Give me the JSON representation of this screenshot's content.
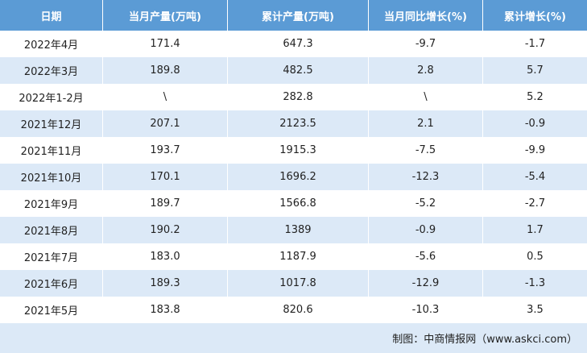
{
  "table": {
    "header": [
      "日期",
      "当月产量(万吨)",
      "累计产量(万吨)",
      "当月同比增长(%)",
      "累计增长(%)"
    ],
    "rows": [
      [
        "2022年4月",
        "171.4",
        "647.3",
        "-9.7",
        "-1.7"
      ],
      [
        "2022年3月",
        "189.8",
        "482.5",
        "2.8",
        "5.7"
      ],
      [
        "2022年1-2月",
        "\\",
        "282.8",
        "\\",
        "5.2"
      ],
      [
        "2021年12月",
        "207.1",
        "2123.5",
        "2.1",
        "-0.9"
      ],
      [
        "2021年11月",
        "193.7",
        "1915.3",
        "-7.5",
        "-9.9"
      ],
      [
        "2021年10月",
        "170.1",
        "1696.2",
        "-12.3",
        "-5.4"
      ],
      [
        "2021年9月",
        "189.7",
        "1566.8",
        "-5.2",
        "-2.7"
      ],
      [
        "2021年8月",
        "190.2",
        "1389",
        "-0.9",
        "1.7"
      ],
      [
        "2021年7月",
        "183.0",
        "1187.9",
        "-5.6",
        "0.5"
      ],
      [
        "2021年6月",
        "189.3",
        "1017.8",
        "-12.9",
        "-1.3"
      ],
      [
        "2021年5月",
        "183.8",
        "820.6",
        "-10.3",
        "3.5"
      ]
    ]
  },
  "footer": {
    "source": "制图：中商情报网（www.askci.com）"
  }
}
